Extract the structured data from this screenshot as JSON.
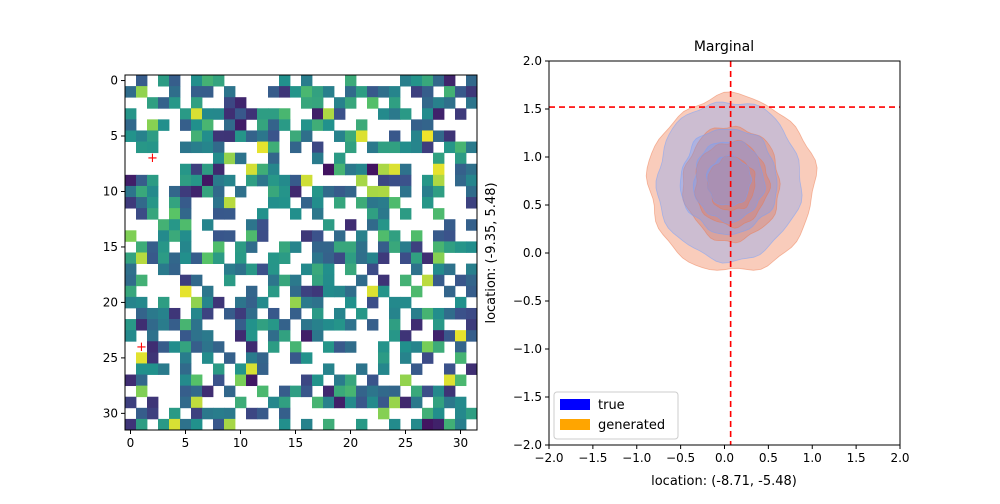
{
  "chart_data": [
    {
      "type": "heatmap",
      "title": "",
      "xlabel": "",
      "ylabel": "",
      "rows": 32,
      "cols": 32,
      "xticks": [
        0,
        5,
        10,
        15,
        20,
        25,
        30
      ],
      "yticks": [
        0,
        5,
        10,
        15,
        20,
        25,
        30
      ],
      "colormap": "viridis",
      "missing_fraction": 0.45,
      "markers": [
        {
          "x": 2,
          "y": 7,
          "symbol": "+",
          "color": "#ff0000"
        },
        {
          "x": 1,
          "y": 24,
          "symbol": "+",
          "color": "#ff0000"
        }
      ],
      "seed": 7
    },
    {
      "type": "area",
      "subtype": "contour-density",
      "title": "Marginal",
      "xlabel": "location: (-8.71, -5.48)",
      "ylabel": "location: (-9.35, 5.48)",
      "xlim": [
        -2.0,
        2.0
      ],
      "ylim": [
        -2.0,
        2.0
      ],
      "xticks": [
        -2.0,
        -1.5,
        -1.0,
        -0.5,
        0.0,
        0.5,
        1.0,
        1.5,
        2.0
      ],
      "yticks": [
        -2.0,
        -1.5,
        -1.0,
        -0.5,
        0.0,
        0.5,
        1.0,
        1.5,
        2.0
      ],
      "vline_x": 0.07,
      "hline_y": 1.52,
      "line_color": "#ff0000",
      "series": [
        {
          "name": "true",
          "color": "#0000ff",
          "fill": "#6f9fff",
          "center": [
            0.05,
            0.75
          ],
          "levels": [
            [
              0.82,
              0.83
            ],
            [
              0.55,
              0.55
            ],
            [
              0.4,
              0.42
            ],
            [
              0.25,
              0.26
            ]
          ]
        },
        {
          "name": "generated",
          "color": "#ffa500",
          "fill": "#ee7a4d",
          "center": [
            0.08,
            0.72
          ],
          "levels": [
            [
              0.95,
              0.92
            ],
            [
              0.55,
              0.6
            ],
            [
              0.42,
              0.44
            ],
            [
              0.27,
              0.28
            ]
          ]
        }
      ],
      "legend": "lower-left"
    }
  ]
}
